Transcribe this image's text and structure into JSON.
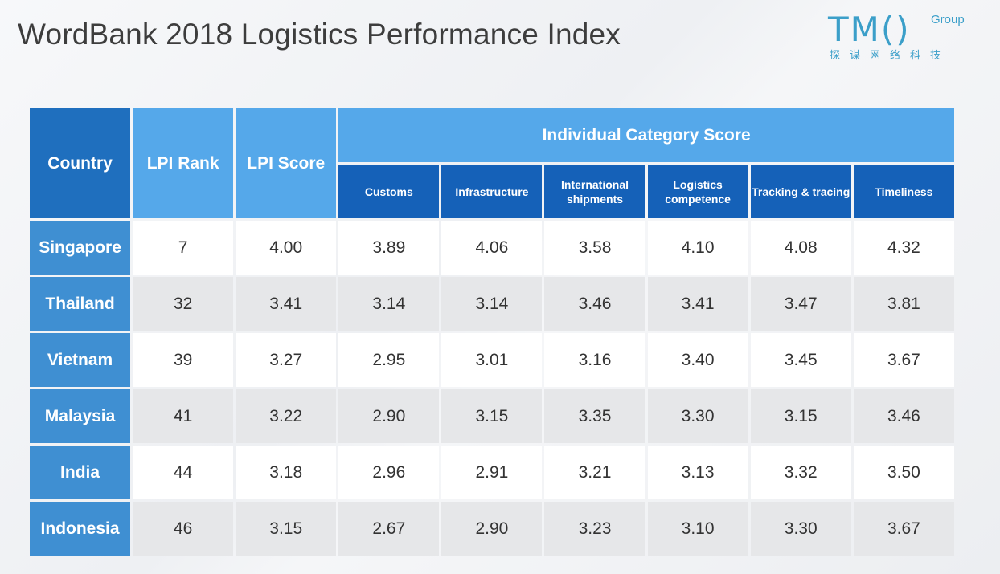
{
  "title": "WordBank 2018 Logistics Performance Index",
  "logo": {
    "main": "TM()",
    "superscript": "Group",
    "chinese": "探谋网络科技"
  },
  "colors": {
    "country_header": "#1f6fbe",
    "light_header": "#55a8ea",
    "sub_header": "#1561b8",
    "country_cell": "#3f8fd2",
    "row_alt": "#e6e7e9",
    "logo": "#3b9fc9"
  },
  "chart_data": {
    "type": "table",
    "title": "WordBank 2018 Logistics Performance Index",
    "headers": {
      "country": "Country",
      "lpi_rank": "LPI Rank",
      "lpi_score": "LPI Score",
      "group": "Individual Category Score",
      "categories": [
        "Customs",
        "Infrastructure",
        "International shipments",
        "Logistics competence",
        "Tracking & tracing",
        "Timeliness"
      ]
    },
    "rows": [
      {
        "country": "Singapore",
        "rank": "7",
        "score": "4.00",
        "values": [
          "3.89",
          "4.06",
          "3.58",
          "4.10",
          "4.08",
          "4.32"
        ]
      },
      {
        "country": "Thailand",
        "rank": "32",
        "score": "3.41",
        "values": [
          "3.14",
          "3.14",
          "3.46",
          "3.41",
          "3.47",
          "3.81"
        ]
      },
      {
        "country": "Vietnam",
        "rank": "39",
        "score": "3.27",
        "values": [
          "2.95",
          "3.01",
          "3.16",
          "3.40",
          "3.45",
          "3.67"
        ]
      },
      {
        "country": "Malaysia",
        "rank": "41",
        "score": "3.22",
        "values": [
          "2.90",
          "3.15",
          "3.35",
          "3.30",
          "3.15",
          "3.46"
        ]
      },
      {
        "country": "India",
        "rank": "44",
        "score": "3.18",
        "values": [
          "2.96",
          "2.91",
          "3.21",
          "3.13",
          "3.32",
          "3.50"
        ]
      },
      {
        "country": "Indonesia",
        "rank": "46",
        "score": "3.15",
        "values": [
          "2.67",
          "2.90",
          "3.23",
          "3.10",
          "3.30",
          "3.67"
        ]
      }
    ]
  }
}
